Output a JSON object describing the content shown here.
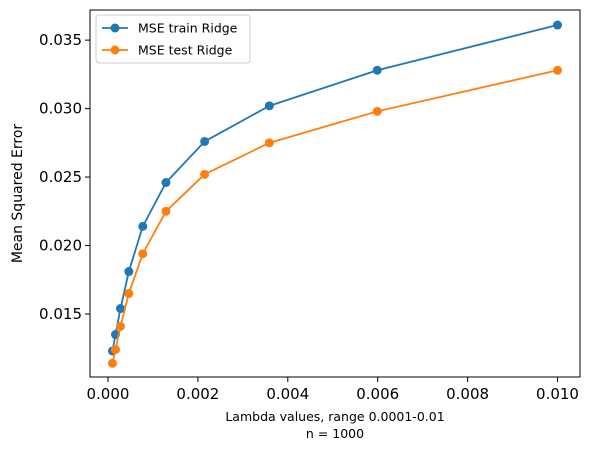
{
  "chart_data": {
    "type": "line",
    "x": [
      0.0001,
      0.000167,
      0.000278,
      0.000464,
      0.000774,
      0.00129,
      0.00215,
      0.00359,
      0.00599,
      0.01
    ],
    "series": [
      {
        "name": "MSE train Ridge",
        "color": "#1f77b4",
        "values": [
          0.0123,
          0.0135,
          0.0154,
          0.0181,
          0.0214,
          0.0246,
          0.0276,
          0.0302,
          0.0328,
          0.0361
        ]
      },
      {
        "name": "MSE test Ridge",
        "color": "#ff7f0e",
        "values": [
          0.0114,
          0.0124,
          0.0141,
          0.0165,
          0.0194,
          0.0225,
          0.0252,
          0.0275,
          0.0298,
          0.0328
        ]
      }
    ],
    "xlabel_lines": [
      "Lambda values, range 0.0001-0.01",
      "n = 1000"
    ],
    "ylabel": "Mean Squared Error",
    "xlim": [
      -0.0004,
      0.0105
    ],
    "ylim": [
      0.0104,
      0.0372
    ],
    "x_ticks": [
      0.0,
      0.002,
      0.004,
      0.006,
      0.008,
      0.01
    ],
    "x_tick_labels": [
      "0.000",
      "0.002",
      "0.004",
      "0.006",
      "0.008",
      "0.010"
    ],
    "y_ticks": [
      0.015,
      0.02,
      0.025,
      0.03,
      0.035
    ],
    "y_tick_labels": [
      "0.015",
      "0.020",
      "0.025",
      "0.030",
      "0.035"
    ],
    "grid": false,
    "legend_position": "top-left"
  }
}
